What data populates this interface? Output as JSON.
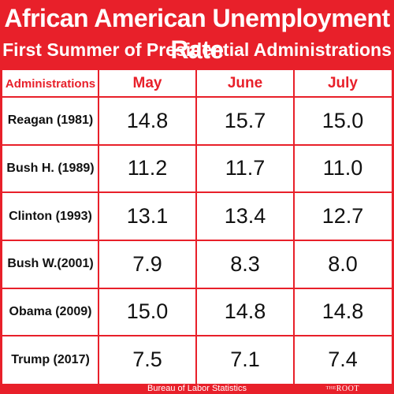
{
  "chart_data": {
    "type": "table",
    "title": "African American Unemployment Rate",
    "subtitle": "First Summer of Presidential Administrations",
    "corner_header": "Administrations",
    "columns": [
      "May",
      "June",
      "July"
    ],
    "rows": [
      {
        "label": "Reagan (1981)",
        "values": [
          "14.8",
          "15.7",
          "15.0"
        ]
      },
      {
        "label": "Bush H. (1989)",
        "values": [
          "11.2",
          "11.7",
          "11.0"
        ]
      },
      {
        "label": "Clinton (1993)",
        "values": [
          "13.1",
          "13.4",
          "12.7"
        ]
      },
      {
        "label": "Bush W.(2001)",
        "values": [
          "7.9",
          "8.3",
          "8.0"
        ]
      },
      {
        "label": "Obama (2009)",
        "values": [
          "15.0",
          "14.8",
          "14.8"
        ]
      },
      {
        "label": "Trump (2017)",
        "values": [
          "7.5",
          "7.1",
          "7.4"
        ]
      }
    ],
    "source": "Bureau of Labor Statistics"
  },
  "branding": {
    "logo_prefix": "THE",
    "logo_name": "ROOT"
  },
  "colors": {
    "accent": "#e8202a",
    "text": "#111111",
    "background": "#ffffff"
  }
}
